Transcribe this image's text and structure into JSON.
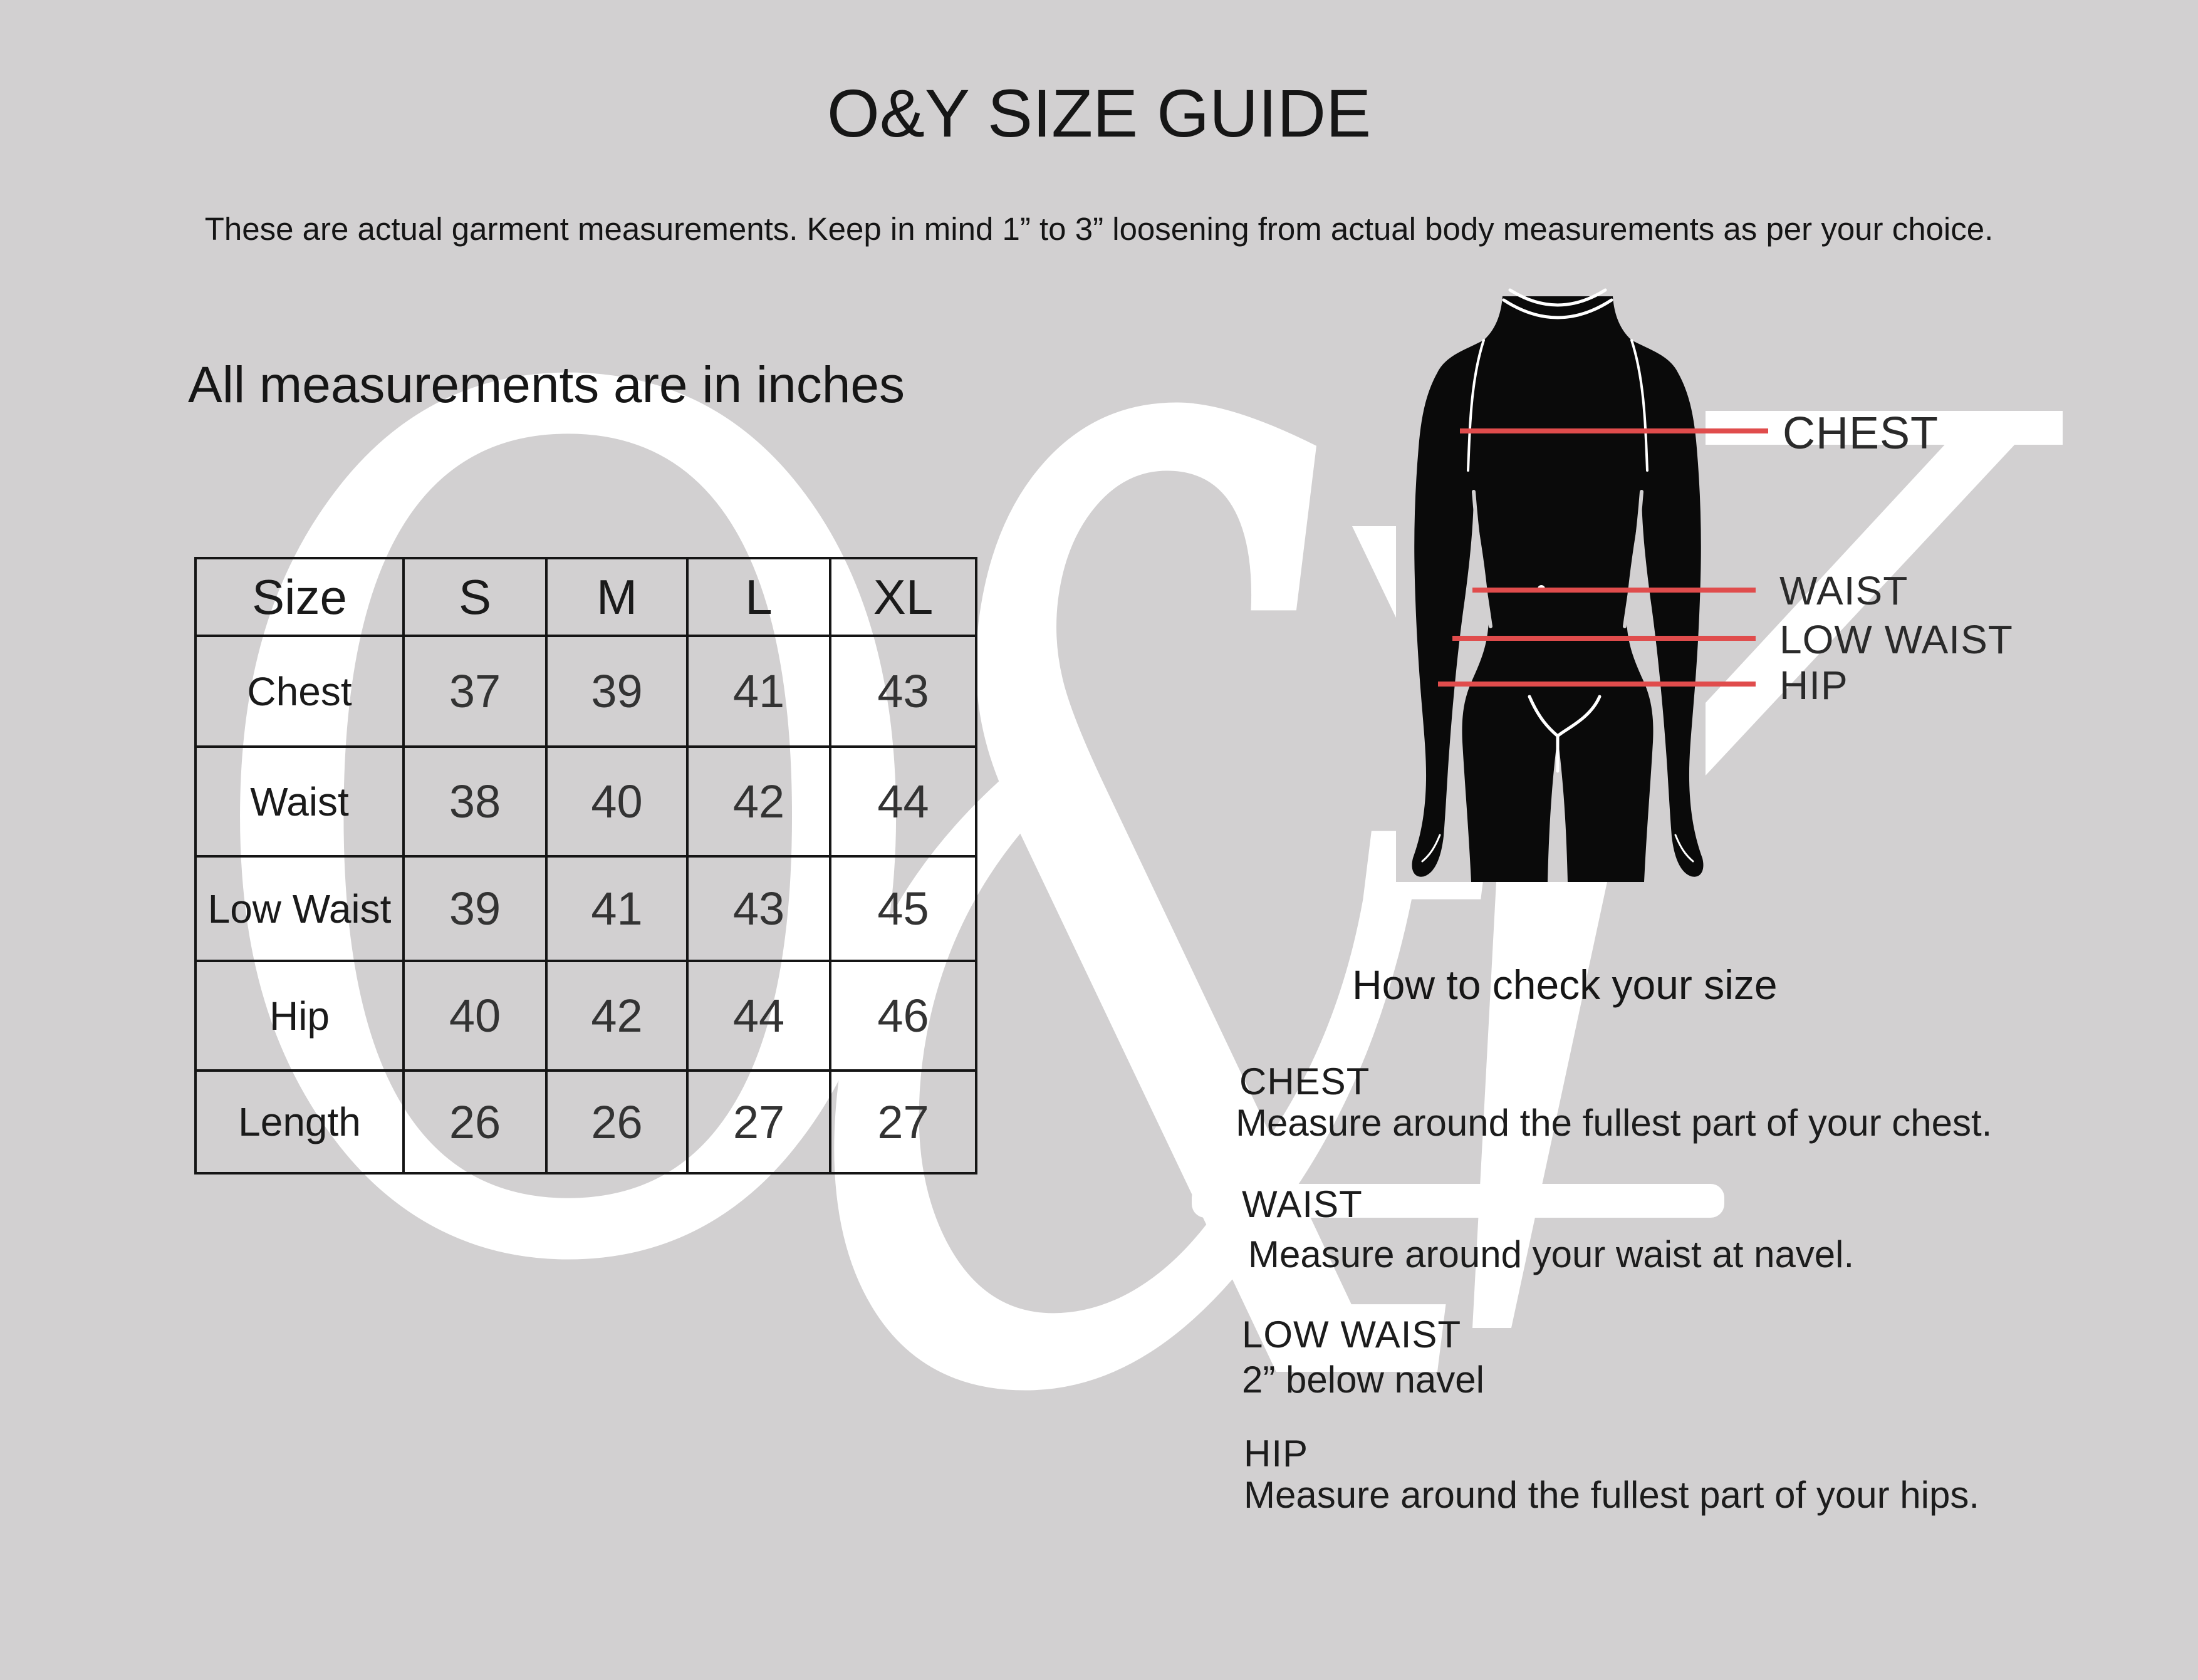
{
  "page": {
    "title": "O&Y SIZE GUIDE",
    "subtitle": "These are actual garment measurements. Keep in mind 1” to 3” loosening from actual body measurements as per your choice.",
    "units_note": "All measurements are in inches",
    "watermark_o": "O",
    "watermark_amp": "&",
    "watermark_y": "Y"
  },
  "size_table": {
    "headers": [
      "Size",
      "S",
      "M",
      "L",
      "XL"
    ],
    "rows": [
      {
        "label": "Chest",
        "values": [
          "37",
          "39",
          "41",
          "43"
        ]
      },
      {
        "label": "Waist",
        "values": [
          "38",
          "40",
          "42",
          "44"
        ]
      },
      {
        "label": "Low Waist",
        "values": [
          "39",
          "41",
          "43",
          "45"
        ]
      },
      {
        "label": "Hip",
        "values": [
          "40",
          "42",
          "44",
          "46"
        ]
      },
      {
        "label": "Length",
        "values": [
          "26",
          "26",
          "27",
          "27"
        ]
      }
    ]
  },
  "diagram": {
    "labels": {
      "chest": "CHEST",
      "waist": "WAIST",
      "low_waist": "LOW WAIST",
      "hip": "HIP"
    }
  },
  "guide": {
    "heading": "How to check your size",
    "sections": [
      {
        "label": "CHEST",
        "text": "Measure around the fullest part of your chest."
      },
      {
        "label": "WAIST",
        "text": "Measure around your waist at navel."
      },
      {
        "label": "LOW WAIST",
        "text": "2” below navel"
      },
      {
        "label": "HIP",
        "text": "Measure around the fullest part of your hips."
      }
    ]
  },
  "colors": {
    "background": "#d2d0d1",
    "accent_line": "#e04c4c",
    "text": "#1f1f1f",
    "watermark": "#ffffff",
    "silhouette": "#0a0a0a"
  }
}
